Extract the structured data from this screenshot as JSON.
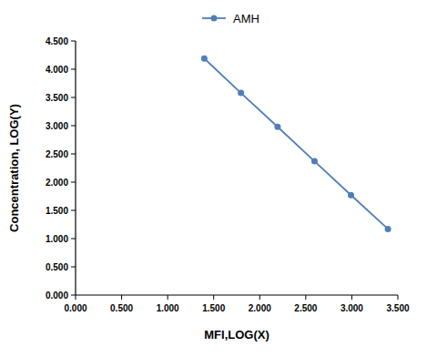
{
  "chart_data": {
    "type": "line",
    "xlabel": "MFI,LOG(X)",
    "ylabel": "Concentration,  LOG(Y)",
    "x": [
      1.398,
      1.796,
      2.194,
      2.595,
      2.991,
      3.392
    ],
    "series": [
      {
        "name": "AMH",
        "color": "#4f7fba",
        "marker": "circle",
        "line_style": "solid",
        "values": [
          4.19,
          3.58,
          2.98,
          2.37,
          1.77,
          1.17
        ]
      }
    ],
    "xlim": [
      0,
      3.5
    ],
    "xticks": [
      {
        "value": 0,
        "label": "0.000"
      },
      {
        "value": 0.5,
        "label": "0.500"
      },
      {
        "value": 1,
        "label": "1.000"
      },
      {
        "value": 1.5,
        "label": "1.500"
      },
      {
        "value": 2,
        "label": "2.000"
      },
      {
        "value": 2.5,
        "label": "2.500"
      },
      {
        "value": 3,
        "label": "3.000"
      },
      {
        "value": 3.5,
        "label": "3.500"
      }
    ],
    "ylim": [
      0,
      4.5
    ],
    "yticks": [
      {
        "value": 0,
        "label": "0.000"
      },
      {
        "value": 0.5,
        "label": "0.500"
      },
      {
        "value": 1,
        "label": "1.000"
      },
      {
        "value": 1.5,
        "label": "1.500"
      },
      {
        "value": 2,
        "label": "2.000"
      },
      {
        "value": 2.5,
        "label": "2.500"
      },
      {
        "value": 3,
        "label": "3.000"
      },
      {
        "value": 3.5,
        "label": "3.500"
      },
      {
        "value": 4,
        "label": "4.000"
      },
      {
        "value": 4.5,
        "label": "4.500"
      }
    ],
    "grid": false,
    "legend": "top"
  }
}
